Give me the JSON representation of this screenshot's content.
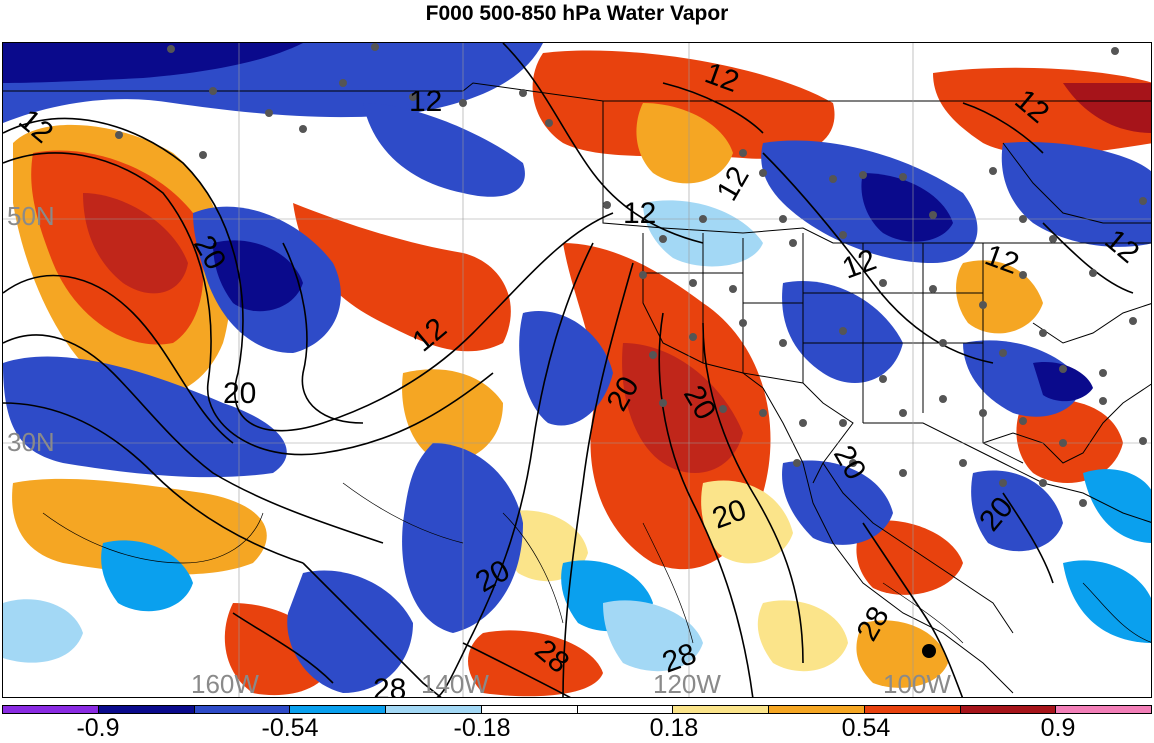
{
  "title": "F000 500-850 hPa Water Vapor",
  "map": {
    "lat_labels": [
      "50N",
      "30N"
    ],
    "lon_labels": [
      "160W",
      "140W",
      "120W",
      "100W"
    ],
    "contour_labels": [
      "12",
      "12",
      "12",
      "12",
      "12",
      "12",
      "12",
      "12",
      "12",
      "12",
      "20",
      "20",
      "20",
      "20",
      "20",
      "20",
      "20",
      "20",
      "28",
      "28",
      "28",
      "28"
    ],
    "station_marker_color": "#555555",
    "contour_color": "#000000"
  },
  "colorbar": {
    "colors": [
      "#8a2be2",
      "#0a0a8c",
      "#2e4bc8",
      "#0aa0ee",
      "#a3d8f5",
      "#ffffff",
      "#ffffff",
      "#fbe48a",
      "#f5a623",
      "#e8420e",
      "#a6141a",
      "#f27fb8"
    ],
    "tick_labels": [
      "-0.9",
      "-0.54",
      "-0.18",
      "0.18",
      "0.54",
      "0.9"
    ]
  }
}
